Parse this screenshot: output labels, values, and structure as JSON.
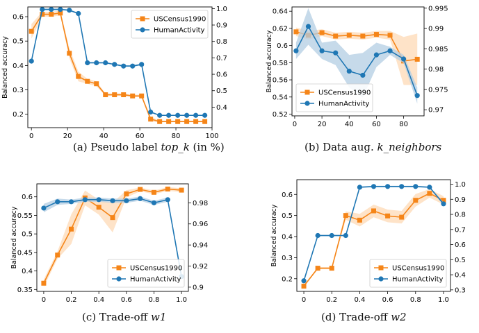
{
  "captions": [
    {
      "prefix": "(a) Pseudo label ",
      "math": "top_k",
      "suffix": " (in %)"
    },
    {
      "prefix": "(b) Data aug. ",
      "math": "k_neighbors",
      "suffix": ""
    },
    {
      "prefix": "(c) Trade-off ",
      "math": "w1",
      "suffix": ""
    },
    {
      "prefix": "(d) Trade-off ",
      "math": "w2",
      "suffix": ""
    }
  ],
  "colors": {
    "usc": "#f58518",
    "human": "#1f77b4",
    "usc_band": "#fdd9b5",
    "human_band": "#b3cde3"
  },
  "chart_data": [
    {
      "type": "line",
      "title": "",
      "ylabel": "Balanced accuracy",
      "legend": "top-right",
      "xlim": [
        -2,
        100
      ],
      "ylim": [
        0.145,
        0.64
      ],
      "y2lim": [
        0.275,
        1.01
      ],
      "xticks": [
        0,
        20,
        40,
        60,
        80,
        100
      ],
      "yticks": [
        0.2,
        0.3,
        0.4,
        0.5,
        0.6
      ],
      "y2ticks": [
        0.4,
        0.5,
        0.6,
        0.7,
        0.8,
        0.9,
        1.0
      ],
      "series": [
        {
          "name": "USCensus1990",
          "axis": "left",
          "marker": "square",
          "x": [
            0,
            6,
            11,
            16,
            21,
            26,
            31,
            36,
            41,
            46,
            51,
            56,
            61,
            66,
            71,
            76,
            81,
            86,
            91,
            96
          ],
          "y": [
            0.54,
            0.61,
            0.61,
            0.615,
            0.45,
            0.355,
            0.335,
            0.325,
            0.28,
            0.28,
            0.28,
            0.275,
            0.275,
            0.18,
            0.17,
            0.17,
            0.17,
            0.17,
            0.17,
            0.17
          ],
          "band": [
            0.03,
            0.01,
            0.01,
            0.01,
            0.02,
            0.02,
            0.01,
            0.01,
            0.005,
            0.005,
            0.005,
            0.005,
            0.005,
            0.01,
            0.003,
            0.003,
            0.003,
            0.003,
            0.003,
            0.003
          ]
        },
        {
          "name": "HumanActivity",
          "axis": "right",
          "marker": "circle",
          "x": [
            0,
            6,
            11,
            16,
            21,
            26,
            31,
            36,
            41,
            46,
            51,
            56,
            61,
            66,
            71,
            76,
            81,
            86,
            91,
            96
          ],
          "y": [
            0.68,
            0.995,
            0.995,
            0.995,
            0.99,
            0.97,
            0.67,
            0.67,
            0.67,
            0.66,
            0.65,
            0.65,
            0.66,
            0.37,
            0.35,
            0.35,
            0.35,
            0.35,
            0.35,
            0.35
          ],
          "band": [
            0.005,
            0.005,
            0.005,
            0.005,
            0.005,
            0.005,
            0.005,
            0.005,
            0.005,
            0.005,
            0.005,
            0.005,
            0.005,
            0.005,
            0.003,
            0.003,
            0.003,
            0.003,
            0.003,
            0.003
          ]
        }
      ]
    },
    {
      "type": "line",
      "title": "",
      "ylabel": "Balanced accuracy",
      "legend": "bottom-left",
      "xlim": [
        -2,
        95
      ],
      "ylim": [
        0.518,
        0.645
      ],
      "y2lim": [
        0.9685,
        0.9953
      ],
      "xticks": [
        0,
        20,
        40,
        60,
        80
      ],
      "yticks": [
        0.52,
        0.54,
        0.56,
        0.58,
        0.6,
        0.62,
        0.64
      ],
      "y2ticks": [
        0.97,
        0.975,
        0.98,
        0.985,
        0.99,
        0.995
      ],
      "series": [
        {
          "name": "USCensus1990",
          "axis": "left",
          "marker": "square",
          "x": [
            1,
            10,
            20,
            30,
            40,
            50,
            60,
            70,
            80,
            90
          ],
          "y": [
            0.616,
            0.612,
            0.615,
            0.611,
            0.612,
            0.611,
            0.613,
            0.612,
            0.582,
            0.584
          ],
          "band": [
            0.005,
            0.005,
            0.004,
            0.004,
            0.004,
            0.004,
            0.004,
            0.005,
            0.028,
            0.03
          ]
        },
        {
          "name": "HumanActivity",
          "axis": "right",
          "marker": "circle",
          "x": [
            1,
            10,
            20,
            30,
            40,
            50,
            60,
            70,
            80,
            90
          ],
          "y": [
            0.9845,
            0.9905,
            0.9845,
            0.984,
            0.9795,
            0.9785,
            0.9835,
            0.9845,
            0.9825,
            0.9735
          ],
          "band": [
            0.002,
            0.0045,
            0.002,
            0.003,
            0.004,
            0.0055,
            0.003,
            0.001,
            0.001,
            0.002
          ]
        }
      ]
    },
    {
      "type": "line",
      "title": "",
      "ylabel": "Balanced accuracy",
      "legend": "bottom-right",
      "xlim": [
        -0.05,
        1.05
      ],
      "ylim": [
        0.345,
        0.635
      ],
      "y2lim": [
        0.896,
        0.998
      ],
      "xticks": [
        0.0,
        0.2,
        0.4,
        0.6,
        0.8,
        1.0
      ],
      "yticks": [
        0.35,
        0.4,
        0.45,
        0.5,
        0.55,
        0.6
      ],
      "y2ticks": [
        0.9,
        0.92,
        0.94,
        0.96,
        0.98
      ],
      "series": [
        {
          "name": "USCensus1990",
          "axis": "left",
          "marker": "square",
          "x": [
            0.0,
            0.1,
            0.2,
            0.3,
            0.4,
            0.5,
            0.6,
            0.7,
            0.8,
            0.9,
            1.0
          ],
          "y": [
            0.367,
            0.443,
            0.513,
            0.597,
            0.572,
            0.544,
            0.608,
            0.62,
            0.612,
            0.621,
            0.618
          ],
          "band": [
            0.01,
            0.01,
            0.04,
            0.02,
            0.02,
            0.04,
            0.01,
            0.005,
            0.005,
            0.005,
            0.005
          ]
        },
        {
          "name": "HumanActivity",
          "axis": "right",
          "marker": "circle",
          "x": [
            0.0,
            0.1,
            0.2,
            0.3,
            0.4,
            0.5,
            0.6,
            0.7,
            0.8,
            0.9,
            1.0
          ],
          "y": [
            0.975,
            0.981,
            0.981,
            0.983,
            0.983,
            0.982,
            0.982,
            0.984,
            0.98,
            0.983,
            0.91
          ],
          "band": [
            0.004,
            0.003,
            0.002,
            0.002,
            0.002,
            0.002,
            0.002,
            0.002,
            0.002,
            0.002,
            0.003
          ]
        }
      ]
    },
    {
      "type": "line",
      "title": "",
      "ylabel": "Balanced accuracy",
      "legend": "bottom-right",
      "xlim": [
        -0.05,
        1.05
      ],
      "ylim": [
        0.14,
        0.67
      ],
      "y2lim": [
        0.29,
        1.03
      ],
      "xticks": [
        0.0,
        0.2,
        0.4,
        0.6,
        0.8,
        1.0
      ],
      "yticks": [
        0.2,
        0.3,
        0.4,
        0.5,
        0.6
      ],
      "y2ticks": [
        0.3,
        0.4,
        0.5,
        0.6,
        0.7,
        0.8,
        0.9,
        1.0
      ],
      "series": [
        {
          "name": "USCensus1990",
          "axis": "left",
          "marker": "square",
          "x": [
            0.0,
            0.1,
            0.2,
            0.3,
            0.4,
            0.5,
            0.6,
            0.7,
            0.8,
            0.9,
            1.0
          ],
          "y": [
            0.165,
            0.25,
            0.25,
            0.5,
            0.478,
            0.522,
            0.498,
            0.492,
            0.572,
            0.605,
            0.572
          ],
          "band": [
            0.005,
            0.005,
            0.005,
            0.02,
            0.03,
            0.03,
            0.03,
            0.03,
            0.03,
            0.02,
            0.02
          ]
        },
        {
          "name": "HumanActivity",
          "axis": "right",
          "marker": "circle",
          "x": [
            0.0,
            0.1,
            0.2,
            0.3,
            0.4,
            0.5,
            0.6,
            0.7,
            0.8,
            0.9,
            1.0
          ],
          "y": [
            0.36,
            0.66,
            0.66,
            0.66,
            0.98,
            0.985,
            0.985,
            0.985,
            0.985,
            0.98,
            0.87
          ],
          "band": [
            0.005,
            0.005,
            0.005,
            0.005,
            0.005,
            0.005,
            0.005,
            0.005,
            0.005,
            0.005,
            0.01
          ]
        }
      ]
    }
  ]
}
